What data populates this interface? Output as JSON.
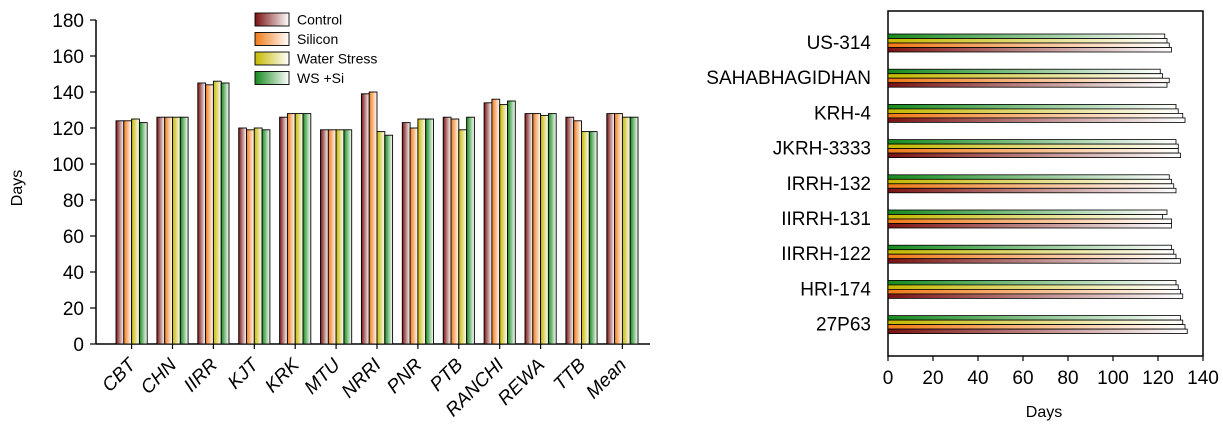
{
  "colors": {
    "Control": [
      "#7a1212",
      "#ffffff"
    ],
    "Silicon": [
      "#f07a18",
      "#ffffff"
    ],
    "Water Stress": [
      "#c5b800",
      "#ffffff"
    ],
    "WS +Si": [
      "#178a1e",
      "#ffffff"
    ]
  },
  "chart_data": [
    {
      "type": "bar",
      "orientation": "vertical",
      "title": "",
      "xlabel": "",
      "ylabel": "Days",
      "ylim": [
        0,
        180
      ],
      "yticks": [
        0,
        20,
        40,
        60,
        80,
        100,
        120,
        140,
        160,
        180
      ],
      "legend_position": "top-center",
      "categories": [
        "CBT",
        "CHN",
        "IIRR",
        "KJT",
        "KRK",
        "MTU",
        "NRRI",
        "PNR",
        "PTB",
        "RANCHI",
        "REWA",
        "TTB",
        "Mean"
      ],
      "series": [
        {
          "name": "Control",
          "values": [
            124,
            126,
            145,
            120,
            126,
            119,
            139,
            123,
            126,
            134,
            128,
            126,
            128
          ]
        },
        {
          "name": "Silicon",
          "values": [
            124,
            126,
            144,
            119,
            128,
            119,
            140,
            120,
            125,
            136,
            128,
            124,
            128
          ]
        },
        {
          "name": "Water Stress",
          "values": [
            125,
            126,
            146,
            120,
            128,
            119,
            118,
            125,
            119,
            133,
            127,
            118,
            126
          ]
        },
        {
          "name": "WS +Si",
          "values": [
            123,
            126,
            145,
            119,
            128,
            119,
            116,
            125,
            126,
            135,
            128,
            118,
            126
          ]
        }
      ]
    },
    {
      "type": "bar",
      "orientation": "horizontal",
      "title": "",
      "xlabel": "Days",
      "ylabel": "",
      "xlim": [
        0,
        140
      ],
      "xticks": [
        0,
        20,
        40,
        60,
        80,
        100,
        120,
        140
      ],
      "categories": [
        "US-314",
        "SAHABHAGIDHAN",
        "KRH-4",
        "JKRH-3333",
        "IRRH-132",
        "IIRRH-131",
        "IIRRH-122",
        "HRI-174",
        "27P63"
      ],
      "series": [
        {
          "name": "WS +Si",
          "values": [
            123,
            121,
            128,
            128,
            125,
            124,
            126,
            128,
            130
          ]
        },
        {
          "name": "Water Stress",
          "values": [
            124,
            122,
            129,
            129,
            126,
            122,
            127,
            129,
            131
          ]
        },
        {
          "name": "Silicon",
          "values": [
            125,
            125,
            131,
            129,
            127,
            126,
            128,
            130,
            132
          ]
        },
        {
          "name": "Control",
          "values": [
            126,
            124,
            132,
            130,
            128,
            126,
            130,
            131,
            133
          ]
        }
      ]
    }
  ]
}
